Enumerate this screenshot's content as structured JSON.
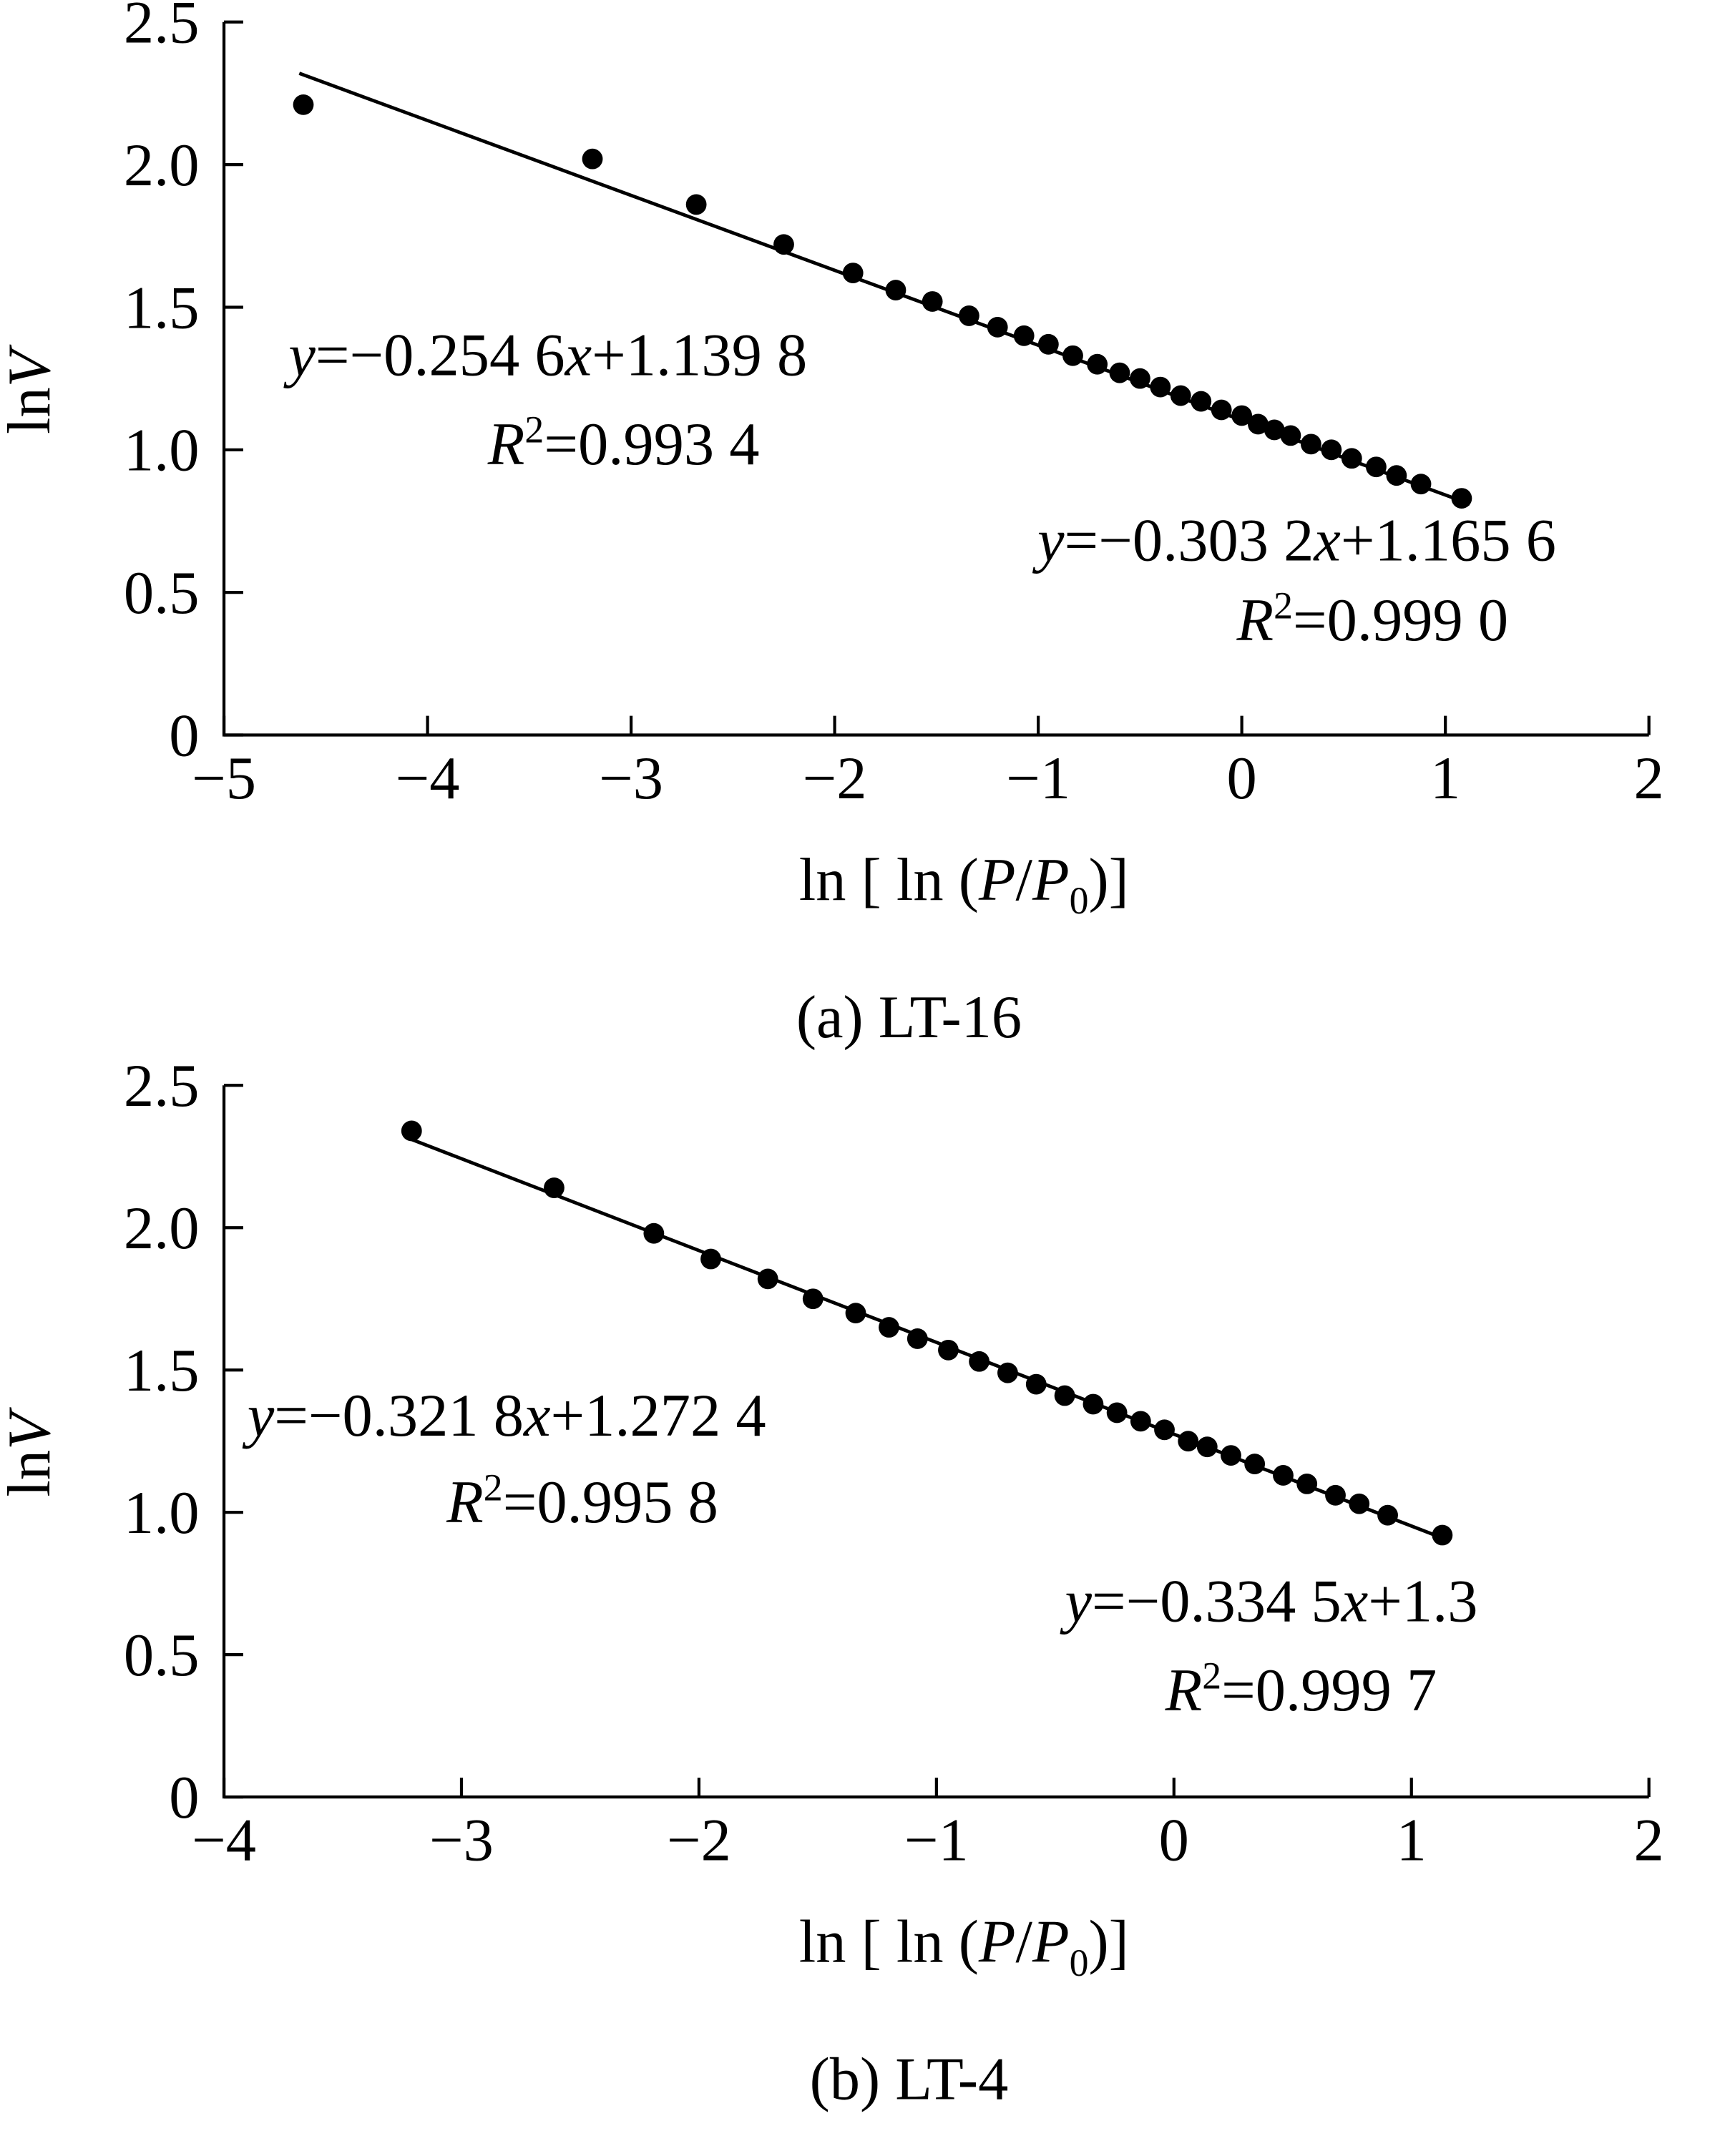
{
  "chart_data": [
    {
      "type": "scatter",
      "caption": "(a) LT-16",
      "x_label": [
        {
          "text": "ln [ ln ("
        },
        {
          "text": "P",
          "italic": true
        },
        {
          "text": "/"
        },
        {
          "text": "P",
          "italic": true
        },
        {
          "text": "0",
          "sub": true
        },
        {
          "text": ")]"
        }
      ],
      "y_label": [
        {
          "text": "ln"
        },
        {
          "text": "V",
          "italic": true
        }
      ],
      "xlim": [
        -5,
        2
      ],
      "ylim": [
        0,
        2.5
      ],
      "xticks": [
        {
          "value": -5,
          "label": "−5"
        },
        {
          "value": -4,
          "label": "−4"
        },
        {
          "value": -3,
          "label": "−3"
        },
        {
          "value": -2,
          "label": "−2"
        },
        {
          "value": -1,
          "label": "−1"
        },
        0,
        1,
        2
      ],
      "yticks": [
        0,
        0.5,
        {
          "value": 1,
          "label": "1.0"
        },
        1.5,
        {
          "value": 2,
          "label": "2.0"
        },
        2.5
      ],
      "series": [
        {
          "color": "#000000",
          "marker": "dot",
          "x": [
            -4.61,
            -3.19,
            -2.68,
            -2.25,
            -1.91,
            -1.7,
            -1.52,
            -1.34,
            -1.2,
            -1.07,
            -0.95,
            -0.83,
            -0.71,
            -0.6,
            -0.5,
            -0.4,
            -0.3,
            -0.2,
            -0.1,
            0.0,
            0.08,
            0.16,
            0.24,
            0.34,
            0.44,
            0.54,
            0.66,
            0.76,
            0.88,
            1.08
          ],
          "values": [
            2.21,
            2.02,
            1.86,
            1.72,
            1.62,
            1.56,
            1.52,
            1.47,
            1.43,
            1.4,
            1.37,
            1.33,
            1.3,
            1.27,
            1.25,
            1.22,
            1.19,
            1.17,
            1.14,
            1.12,
            1.09,
            1.07,
            1.05,
            1.02,
            1.0,
            0.97,
            0.94,
            0.91,
            0.88,
            0.83
          ]
        },
        {
          "color": "#000000",
          "marker": "line",
          "x": [
            -4.63,
            1.12
          ],
          "values": [
            2.32,
            0.81
          ]
        }
      ],
      "annotations": [
        [
          {
            "text": "y",
            "italic": true
          },
          {
            "text": "=−0.254 6"
          },
          {
            "text": "x",
            "italic": true
          },
          {
            "text": "+1.139 8"
          }
        ],
        [
          {
            "text": "R",
            "italic": true
          },
          {
            "text": "2",
            "sup": true
          },
          {
            "text": "=0.993 4"
          }
        ],
        [
          {
            "text": "y",
            "italic": true
          },
          {
            "text": "=−0.303 2"
          },
          {
            "text": "x",
            "italic": true
          },
          {
            "text": "+1.165 6"
          }
        ],
        [
          {
            "text": "R",
            "italic": true
          },
          {
            "text": "2",
            "sup": true
          },
          {
            "text": "=0.999 0"
          }
        ]
      ]
    },
    {
      "type": "scatter",
      "caption": "(b)  LT-4",
      "x_label": [
        {
          "text": "ln [ ln ("
        },
        {
          "text": "P",
          "italic": true
        },
        {
          "text": "/"
        },
        {
          "text": "P",
          "italic": true
        },
        {
          "text": "0",
          "sub": true
        },
        {
          "text": ")]"
        }
      ],
      "y_label": [
        {
          "text": "ln"
        },
        {
          "text": "V",
          "italic": true
        }
      ],
      "xlim": [
        -4,
        2
      ],
      "ylim": [
        0,
        2.5
      ],
      "xticks": [
        {
          "value": -4,
          "label": "−4"
        },
        {
          "value": -3,
          "label": "−3"
        },
        {
          "value": -2,
          "label": "−2"
        },
        {
          "value": -1,
          "label": "−1"
        },
        0,
        1,
        2
      ],
      "yticks": [
        0,
        0.5,
        {
          "value": 1,
          "label": "1.0"
        },
        1.5,
        {
          "value": 2,
          "label": "2.0"
        },
        2.5
      ],
      "series": [
        {
          "color": "#000000",
          "marker": "dot",
          "x": [
            -3.21,
            -2.61,
            -2.19,
            -1.95,
            -1.71,
            -1.52,
            -1.34,
            -1.2,
            -1.08,
            -0.95,
            -0.82,
            -0.7,
            -0.58,
            -0.46,
            -0.34,
            -0.24,
            -0.14,
            -0.04,
            0.06,
            0.14,
            0.24,
            0.34,
            0.46,
            0.56,
            0.68,
            0.78,
            0.9,
            1.13
          ],
          "values": [
            2.34,
            2.14,
            1.98,
            1.89,
            1.82,
            1.75,
            1.7,
            1.65,
            1.61,
            1.57,
            1.53,
            1.49,
            1.45,
            1.41,
            1.38,
            1.35,
            1.32,
            1.29,
            1.25,
            1.23,
            1.2,
            1.17,
            1.13,
            1.1,
            1.06,
            1.03,
            0.99,
            0.92
          ]
        },
        {
          "color": "#000000",
          "marker": "line",
          "x": [
            -3.21,
            1.13
          ],
          "values": [
            2.31,
            0.91
          ]
        }
      ],
      "annotations": [
        [
          {
            "text": "y",
            "italic": true
          },
          {
            "text": "=−0.321 8"
          },
          {
            "text": "x",
            "italic": true
          },
          {
            "text": "+1.272 4"
          }
        ],
        [
          {
            "text": "R",
            "italic": true
          },
          {
            "text": "2",
            "sup": true
          },
          {
            "text": "=0.995 8"
          }
        ],
        [
          {
            "text": "y",
            "italic": true
          },
          {
            "text": "=−0.334 5"
          },
          {
            "text": "x",
            "italic": true
          },
          {
            "text": "+1.3"
          }
        ],
        [
          {
            "text": "R",
            "italic": true
          },
          {
            "text": "2",
            "sup": true
          },
          {
            "text": "=0.999 7"
          }
        ]
      ]
    }
  ]
}
